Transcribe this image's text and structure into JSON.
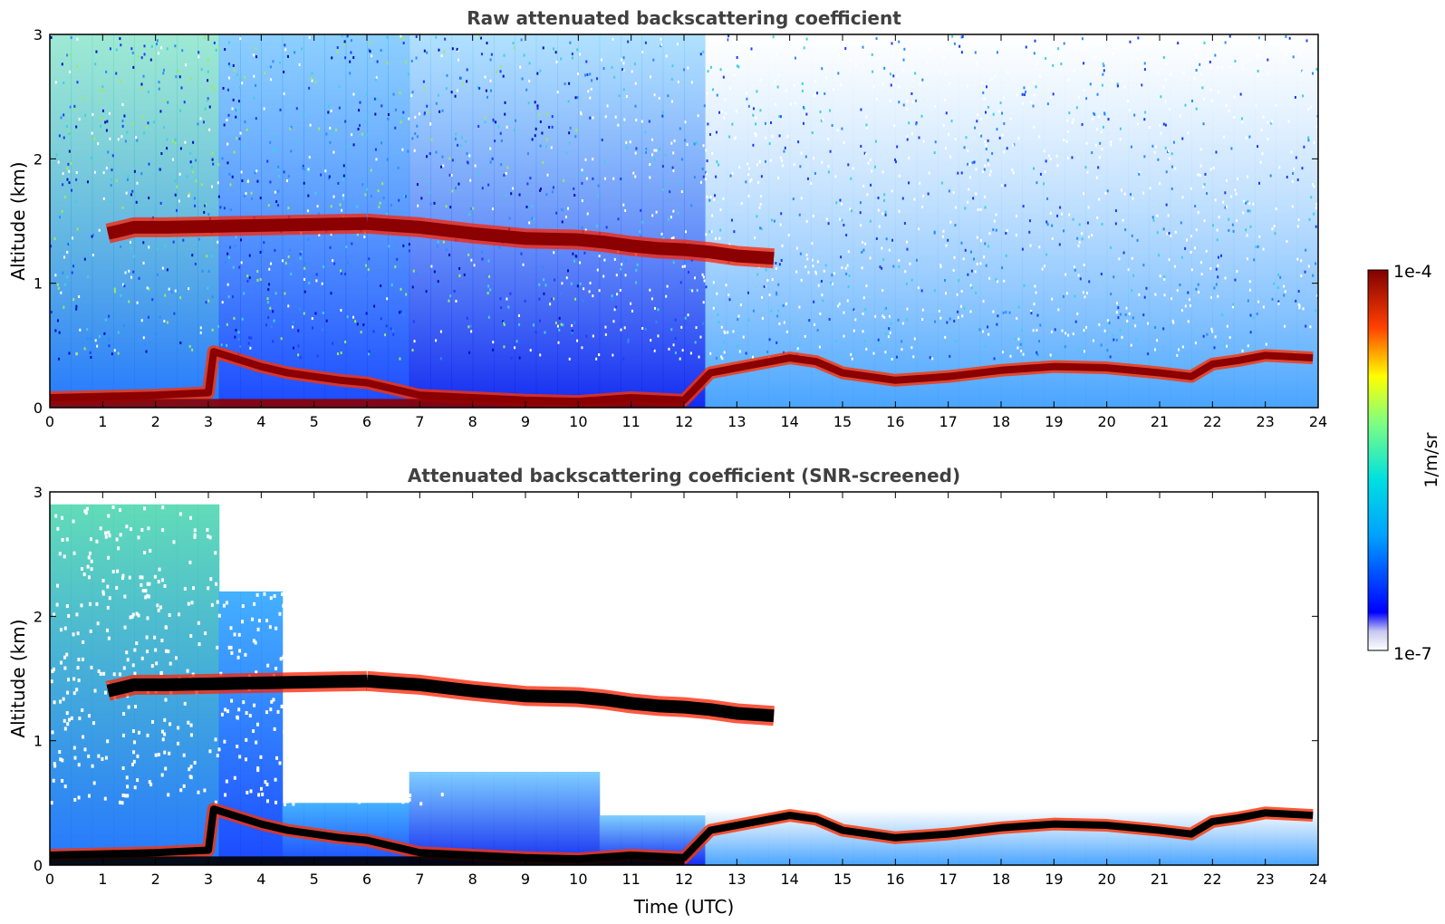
{
  "chart_data": [
    {
      "type": "heatmap",
      "title": "Raw attenuated backscattering coefficient",
      "xlabel": "",
      "ylabel": "Altitude (km)",
      "xlim": [
        0,
        24
      ],
      "ylim": [
        0,
        3
      ],
      "xticks": [
        "0",
        "1",
        "2",
        "3",
        "4",
        "5",
        "6",
        "7",
        "8",
        "9",
        "10",
        "11",
        "12",
        "13",
        "14",
        "15",
        "16",
        "17",
        "18",
        "19",
        "20",
        "21",
        "22",
        "23",
        "24"
      ],
      "yticks": [
        "0",
        "1",
        "2",
        "3"
      ],
      "grid": false,
      "screened": false,
      "boundary_layer_top": {
        "x": [
          0,
          1,
          2,
          3,
          3.1,
          4,
          4.5,
          5,
          5.5,
          6,
          6.5,
          7,
          8,
          9,
          10,
          11,
          12,
          12.5,
          13,
          14,
          14.5,
          15,
          16,
          17,
          18,
          19,
          20,
          21,
          21.6,
          22,
          22.5,
          23,
          23.9
        ],
        "y": [
          0.08,
          0.09,
          0.1,
          0.12,
          0.45,
          0.33,
          0.28,
          0.25,
          0.22,
          0.2,
          0.15,
          0.1,
          0.08,
          0.06,
          0.05,
          0.08,
          0.06,
          0.28,
          0.32,
          0.4,
          0.37,
          0.28,
          0.22,
          0.25,
          0.3,
          0.33,
          0.32,
          0.28,
          0.25,
          0.35,
          0.38,
          0.42,
          0.4
        ]
      },
      "cloud_layer": {
        "x": [
          1.1,
          1.6,
          2.2,
          6.0,
          6.3,
          7.0,
          8.0,
          9.0,
          10.0,
          10.5,
          11.0,
          11.5,
          12.0,
          12.5,
          13.0,
          13.7
        ],
        "y": [
          1.4,
          1.45,
          1.45,
          1.48,
          1.47,
          1.45,
          1.4,
          1.36,
          1.35,
          1.33,
          1.3,
          1.28,
          1.27,
          1.25,
          1.22,
          1.2
        ]
      }
    },
    {
      "type": "heatmap",
      "title": "Attenuated backscattering coefficient (SNR-screened)",
      "xlabel": "Time (UTC)",
      "ylabel": "Altitude (km)",
      "xlim": [
        0,
        24
      ],
      "ylim": [
        0,
        3
      ],
      "xticks": [
        "0",
        "1",
        "2",
        "3",
        "4",
        "5",
        "6",
        "7",
        "8",
        "9",
        "10",
        "11",
        "12",
        "13",
        "14",
        "15",
        "16",
        "17",
        "18",
        "19",
        "20",
        "21",
        "22",
        "23",
        "24"
      ],
      "yticks": [
        "0",
        "1",
        "2",
        "3"
      ],
      "grid": false,
      "screened": true
    }
  ],
  "colorbar": {
    "label": "1/m/sr",
    "max_label": "1e-4",
    "min_label": "1e-7",
    "colormap": "jet",
    "scale": "log"
  },
  "colors": {
    "title": "#404040",
    "cloud": "#8b0000",
    "screened_cloud_core": "#000000"
  }
}
